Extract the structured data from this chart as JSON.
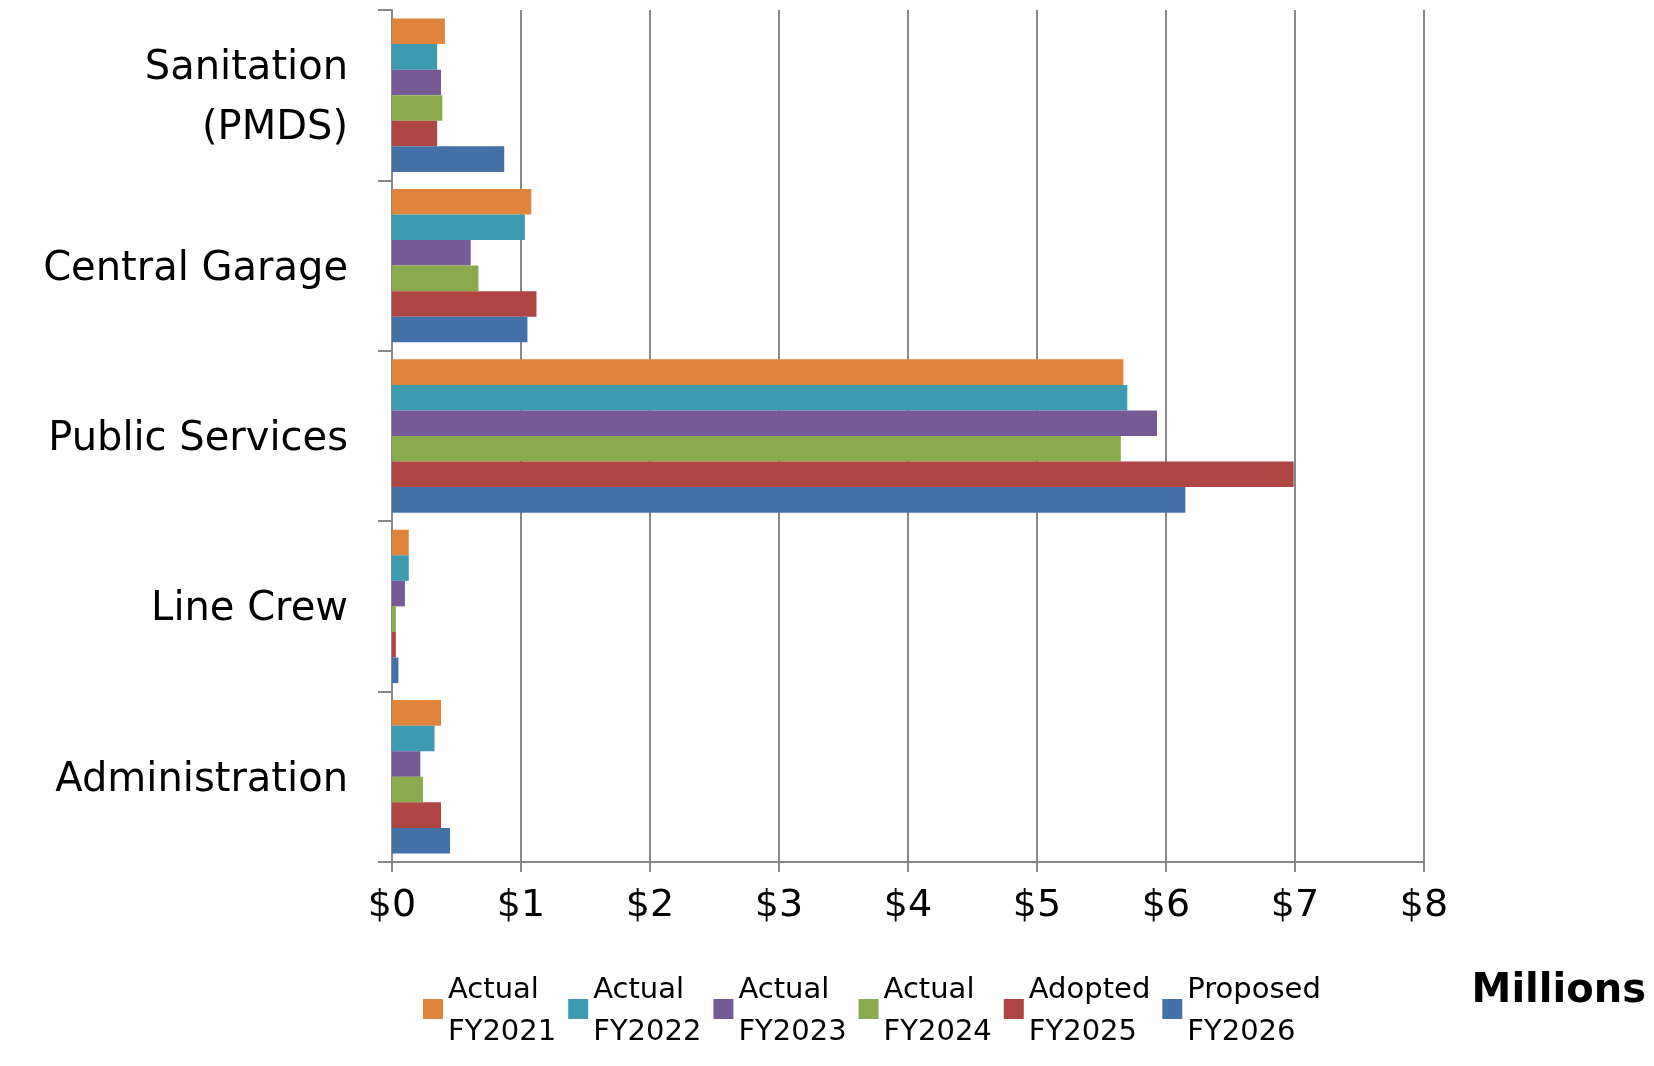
{
  "chart_data": {
    "type": "bar",
    "orientation": "horizontal",
    "xlabel": "Millions",
    "categories": [
      "Sanitation (PMDS)",
      "Central Garage",
      "Public Services",
      "Line Crew",
      "Administration"
    ],
    "series": [
      {
        "name": "Actual FY2021",
        "color": "#e0843c",
        "values": [
          0.41,
          1.08,
          5.67,
          0.13,
          0.38
        ]
      },
      {
        "name": "Actual FY2022",
        "color": "#3d9bb0",
        "values": [
          0.35,
          1.03,
          5.7,
          0.13,
          0.33
        ]
      },
      {
        "name": "Actual FY2023",
        "color": "#755a96",
        "values": [
          0.38,
          0.61,
          5.93,
          0.1,
          0.22
        ]
      },
      {
        "name": "Actual FY2024",
        "color": "#8aab4d",
        "values": [
          0.39,
          0.67,
          5.65,
          0.03,
          0.24
        ]
      },
      {
        "name": "Adopted FY2025",
        "color": "#b04644",
        "values": [
          0.35,
          1.12,
          6.99,
          0.03,
          0.38
        ]
      },
      {
        "name": "Proposed FY2026",
        "color": "#4472a8",
        "values": [
          0.87,
          1.05,
          6.15,
          0.05,
          0.45
        ]
      }
    ],
    "xlim": [
      0,
      8
    ],
    "xticks": [
      {
        "value": 0,
        "label": "$0"
      },
      {
        "value": 1,
        "label": "$1"
      },
      {
        "value": 2,
        "label": "$2"
      },
      {
        "value": 3,
        "label": "$3"
      },
      {
        "value": 4,
        "label": "$4"
      },
      {
        "value": 5,
        "label": "$5"
      },
      {
        "value": 6,
        "label": "$6"
      },
      {
        "value": 7,
        "label": "$7"
      },
      {
        "value": 8,
        "label": "$8"
      }
    ],
    "grid": "x",
    "legend": "bottom"
  }
}
